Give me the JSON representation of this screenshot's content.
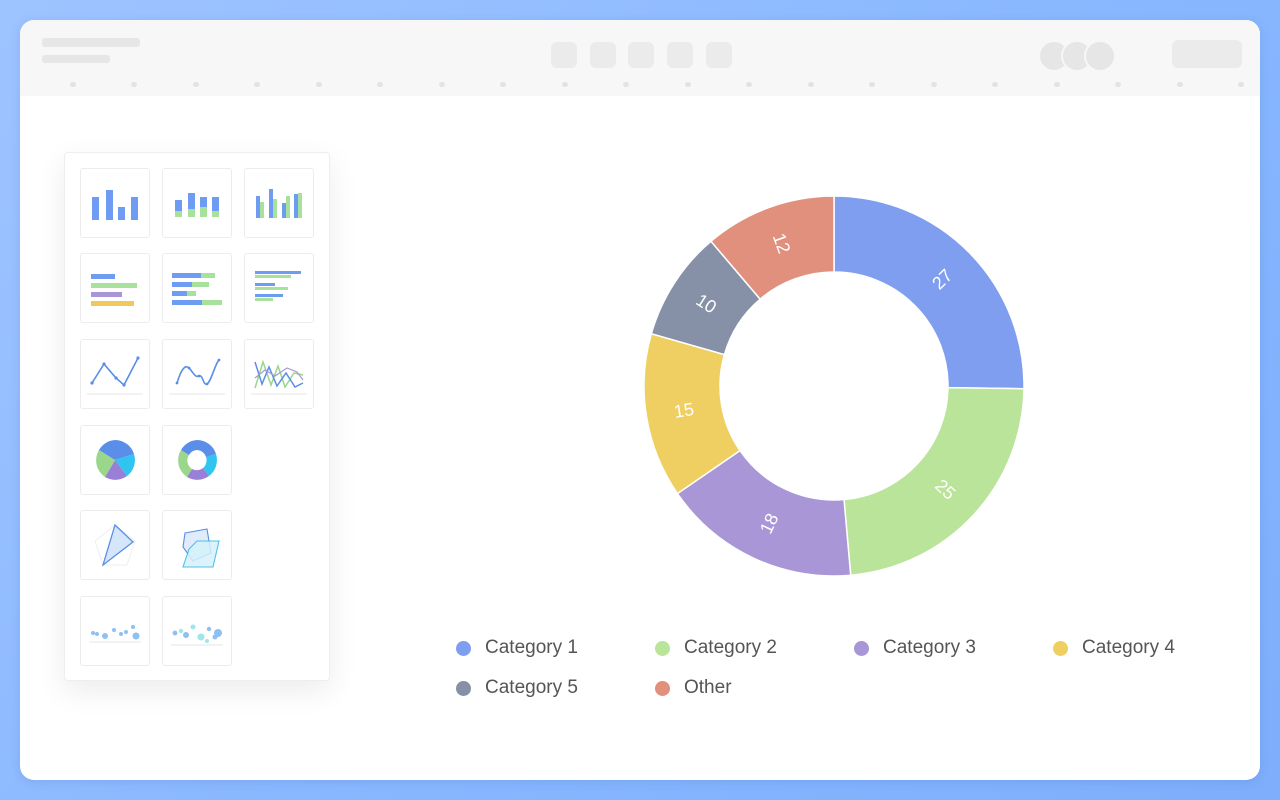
{
  "chart_types_panel": {
    "tiles": [
      {
        "icon": "bar-chart-icon"
      },
      {
        "icon": "stacked-bar-chart-icon"
      },
      {
        "icon": "grouped-bar-chart-icon"
      },
      {
        "icon": "horizontal-bar-chart-icon"
      },
      {
        "icon": "stacked-horizontal-bar-chart-icon"
      },
      {
        "icon": "grouped-horizontal-bar-chart-icon"
      },
      {
        "icon": "line-chart-icon"
      },
      {
        "icon": "smooth-line-chart-icon"
      },
      {
        "icon": "multi-line-chart-icon"
      },
      {
        "icon": "pie-chart-icon"
      },
      {
        "icon": "donut-chart-icon"
      },
      {
        "icon": "radar-chart-icon"
      },
      {
        "icon": "multi-radar-chart-icon"
      },
      {
        "icon": "scatter-chart-icon"
      },
      {
        "icon": "bubble-chart-icon"
      }
    ]
  },
  "chart_data": {
    "type": "pie",
    "variant": "donut",
    "title": "",
    "categories": [
      "Category 1",
      "Category 2",
      "Category 3",
      "Category 4",
      "Category 5",
      "Other"
    ],
    "values": [
      27,
      25,
      18,
      15,
      10,
      12
    ],
    "colors": [
      "#7f9ef0",
      "#b9e49a",
      "#a896d6",
      "#f0cf62",
      "#8691a8",
      "#e0907c"
    ],
    "data_labels": [
      "27",
      "25",
      "18",
      "15",
      "10",
      "12"
    ],
    "legend_position": "bottom"
  },
  "legend": {
    "items": [
      {
        "label": "Category 1",
        "color": "#7f9ef0"
      },
      {
        "label": "Category 2",
        "color": "#b9e49a"
      },
      {
        "label": "Category 3",
        "color": "#a896d6"
      },
      {
        "label": "Category 4",
        "color": "#f0cf62"
      },
      {
        "label": "Category 5",
        "color": "#8691a8"
      },
      {
        "label": "Other",
        "color": "#e0907c"
      }
    ]
  }
}
